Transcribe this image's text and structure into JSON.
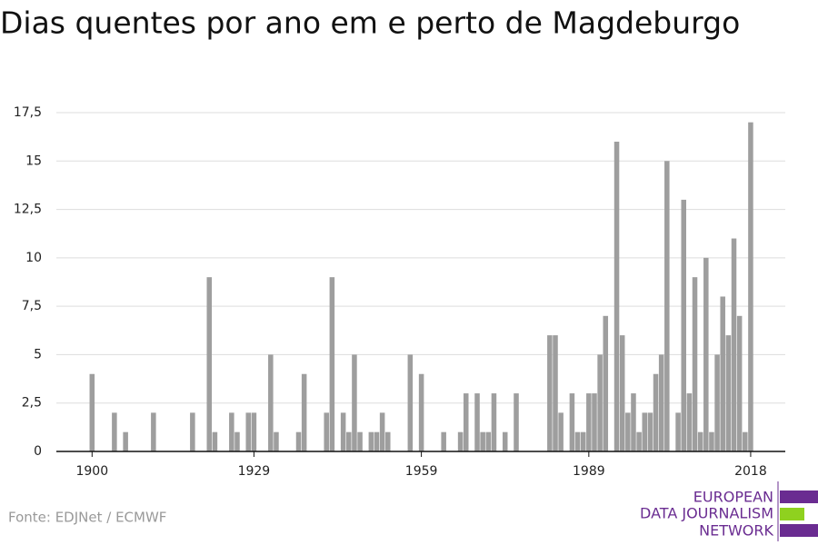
{
  "chart_data": {
    "type": "bar",
    "title": "Dias quentes por ano em e perto de Magdeburgo",
    "source": "Fonte: EDJNet / ECMWF",
    "logo": [
      "EUROPEAN",
      "DATA JOURNALISM",
      "NETWORK"
    ],
    "color": "#9e9e9e",
    "x": [
      1900,
      1901,
      1902,
      1903,
      1904,
      1905,
      1906,
      1907,
      1908,
      1909,
      1910,
      1911,
      1912,
      1913,
      1914,
      1915,
      1916,
      1917,
      1918,
      1919,
      1920,
      1921,
      1922,
      1923,
      1924,
      1925,
      1926,
      1927,
      1928,
      1929,
      1930,
      1931,
      1932,
      1933,
      1934,
      1935,
      1936,
      1937,
      1938,
      1939,
      1940,
      1941,
      1942,
      1943,
      1944,
      1945,
      1946,
      1947,
      1948,
      1949,
      1950,
      1951,
      1952,
      1953,
      1954,
      1955,
      1956,
      1957,
      1958,
      1959,
      1960,
      1961,
      1962,
      1963,
      1964,
      1965,
      1966,
      1967,
      1968,
      1969,
      1970,
      1971,
      1972,
      1973,
      1974,
      1975,
      1976,
      1977,
      1978,
      1979,
      1980,
      1981,
      1982,
      1983,
      1984,
      1985,
      1986,
      1987,
      1988,
      1989,
      1990,
      1991,
      1992,
      1993,
      1994,
      1995,
      1996,
      1997,
      1998,
      1999,
      2000,
      2001,
      2002,
      2003,
      2004,
      2005,
      2006,
      2007,
      2008,
      2009,
      2010,
      2011,
      2012,
      2013,
      2014,
      2015,
      2016,
      2017,
      2018
    ],
    "values": [
      4,
      0,
      0,
      0,
      2,
      0,
      1,
      0,
      0,
      0,
      0,
      2,
      0,
      0,
      0,
      0,
      0,
      0,
      2,
      0,
      0,
      9,
      1,
      0,
      0,
      2,
      1,
      0,
      2,
      2,
      0,
      0,
      5,
      1,
      0,
      0,
      0,
      1,
      4,
      0,
      0,
      0,
      2,
      9,
      0,
      2,
      1,
      5,
      1,
      0,
      1,
      1,
      2,
      1,
      0,
      0,
      0,
      5,
      0,
      4,
      0,
      0,
      0,
      1,
      0,
      0,
      1,
      3,
      0,
      3,
      1,
      1,
      3,
      0,
      1,
      0,
      3,
      0,
      0,
      0,
      0,
      0,
      6,
      6,
      2,
      0,
      3,
      1,
      1,
      3,
      3,
      5,
      7,
      0,
      16,
      6,
      2,
      3,
      1,
      2,
      2,
      4,
      5,
      15,
      0,
      2,
      13,
      3,
      9,
      1,
      10,
      1,
      5,
      8,
      6,
      11,
      7,
      1,
      17
    ],
    "xlim": [
      1893.6,
      2024.2
    ],
    "xticks": [
      1900,
      1929,
      1959,
      1989,
      2018
    ],
    "ylim": [
      0,
      17.5
    ],
    "yticks": [
      0,
      {
        "value": 2.5,
        "label": "2,5"
      },
      5,
      {
        "value": 7.5,
        "label": "7,5"
      },
      10,
      {
        "value": 12.5,
        "label": "12,5"
      },
      15,
      {
        "value": 17.5,
        "label": "17,5"
      }
    ],
    "grid": true
  }
}
